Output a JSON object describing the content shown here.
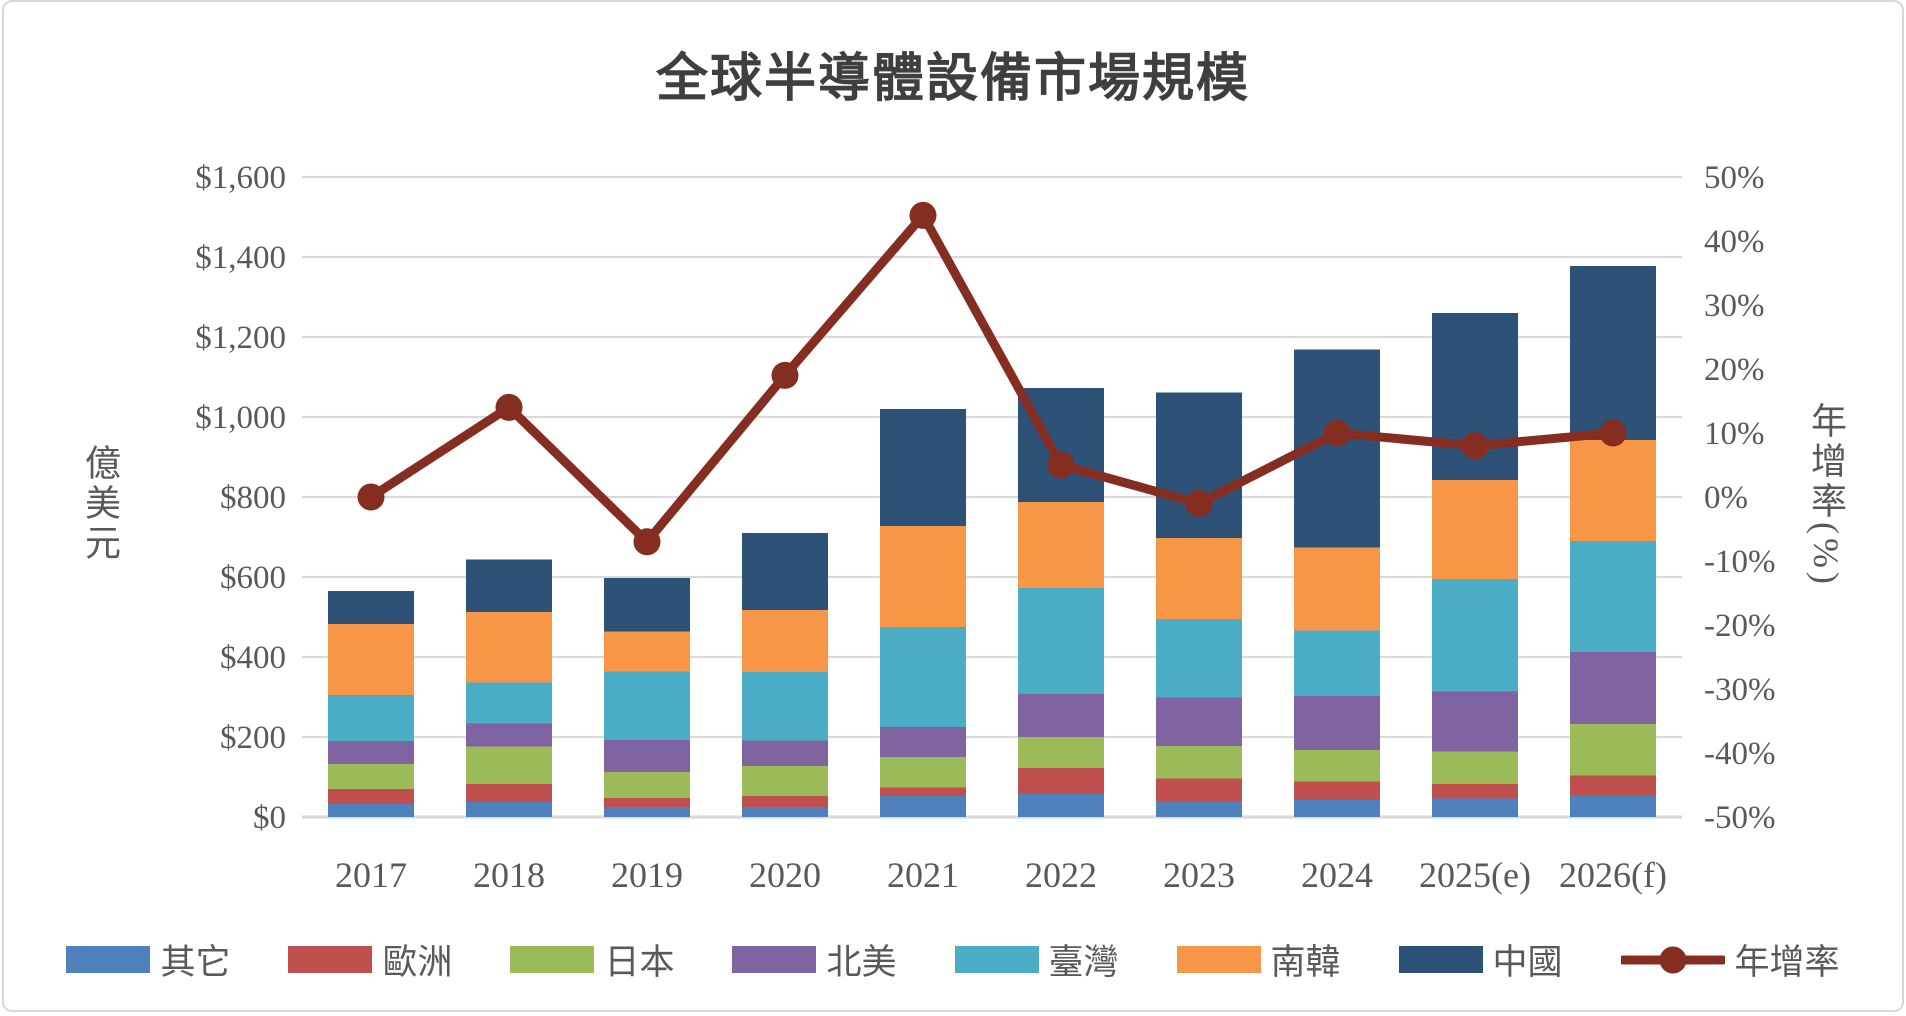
{
  "title": "全球半導體設備市場規模",
  "chart_data": {
    "type": "bar+line",
    "stacked": true,
    "title": "全球半導體設備市場規模",
    "categories": [
      "2017",
      "2018",
      "2019",
      "2020",
      "2021",
      "2022",
      "2023",
      "2024",
      "2025(e)",
      "2026(f)"
    ],
    "series": [
      {
        "name": "其它",
        "color": "#4F81BD",
        "values": [
          33,
          38,
          25,
          25,
          52,
          57,
          39,
          42,
          46,
          54
        ]
      },
      {
        "name": "歐洲",
        "color": "#C0504D",
        "values": [
          37,
          44,
          23,
          27,
          22,
          65,
          57,
          47,
          36,
          50
        ]
      },
      {
        "name": "日本",
        "color": "#9BBB59",
        "values": [
          62,
          94,
          64,
          76,
          76,
          78,
          81,
          79,
          82,
          129
        ]
      },
      {
        "name": "北美",
        "color": "#8064A2",
        "values": [
          58,
          58,
          81,
          63,
          75,
          107,
          122,
          134,
          150,
          180
        ]
      },
      {
        "name": "臺灣",
        "color": "#4BACC6",
        "values": [
          115,
          102,
          171,
          172,
          250,
          266,
          196,
          164,
          281,
          277
        ]
      },
      {
        "name": "南韓",
        "color": "#F79646",
        "values": [
          178,
          177,
          100,
          154,
          253,
          214,
          202,
          208,
          248,
          253
        ]
      },
      {
        "name": "中國",
        "color": "#2E5277",
        "values": [
          82,
          131,
          134,
          193,
          292,
          285,
          364,
          495,
          417,
          435
        ]
      }
    ],
    "line_series": {
      "name": "年增率",
      "color": "#842D20",
      "unit": "%",
      "values": [
        0,
        14,
        -7,
        19,
        44,
        5,
        -1,
        10,
        8,
        10
      ]
    },
    "left_axis": {
      "title": "億美元",
      "min": 0,
      "max": 1600,
      "step": 200,
      "tick_labels": [
        "$0",
        "$200",
        "$400",
        "$600",
        "$800",
        "$1,000",
        "$1,200",
        "$1,400",
        "$1,600"
      ]
    },
    "right_axis": {
      "title": "年增率(%)",
      "min": -50,
      "max": 50,
      "step": 10,
      "tick_labels": [
        "-50%",
        "-40%",
        "-30%",
        "-20%",
        "-10%",
        "0%",
        "10%",
        "20%",
        "30%",
        "40%",
        "50%"
      ]
    },
    "grid": true,
    "legend_position": "bottom",
    "colors": {
      "grid": "#D9D9D9",
      "axis_text": "#595959",
      "title_text": "#3F3F3F",
      "background": "#FFFFFF"
    }
  }
}
